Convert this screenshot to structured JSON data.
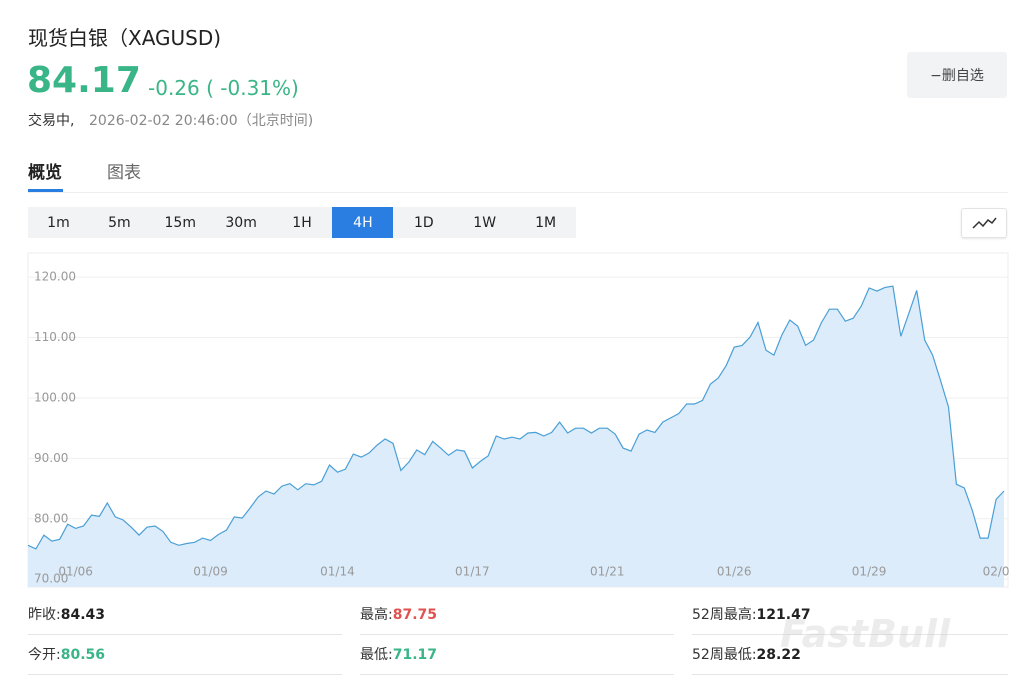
{
  "header": {
    "title": "现货白银（XAGUSD)",
    "price": "84.17",
    "change": "-0.26 ( -0.31%)",
    "status": "交易中,",
    "datetime": "2026-02-02 20:46:00（北京时间)",
    "watch_button": "−删自选"
  },
  "tabs": [
    "概览",
    "图表"
  ],
  "intervals": {
    "items": [
      "1m",
      "5m",
      "15m",
      "30m",
      "1H",
      "4H",
      "1D",
      "1W",
      "1M"
    ],
    "active_index": 5
  },
  "chart_data": {
    "type": "area",
    "color": "#4a9fd6",
    "fill": "#dcecfb",
    "grid": true,
    "x": [
      0,
      1,
      2,
      3,
      4,
      5,
      6,
      7,
      8,
      9,
      10,
      11,
      12,
      13,
      14,
      15,
      16,
      17,
      18,
      19,
      20,
      21,
      22,
      23,
      24,
      25,
      26,
      27,
      28,
      29,
      30,
      31,
      32,
      33,
      34,
      35,
      36,
      37,
      38,
      39,
      40,
      41,
      42,
      43,
      44,
      45,
      46,
      47,
      48,
      49,
      50,
      51,
      52,
      53,
      54,
      55,
      56,
      57,
      58,
      59,
      60,
      61,
      62,
      63,
      64,
      65,
      66,
      67,
      68,
      69,
      70,
      71,
      72,
      73,
      74,
      75,
      76,
      77,
      78,
      79,
      80,
      81,
      82,
      83,
      84,
      85,
      86,
      87,
      88,
      89,
      90,
      91,
      92,
      93,
      94,
      95,
      96,
      97,
      98,
      99,
      100,
      101,
      102,
      103,
      104,
      105,
      106,
      107,
      108,
      109,
      110,
      111,
      112,
      113,
      114,
      115,
      116,
      117,
      118,
      119,
      120,
      121,
      122,
      123
    ],
    "values": [
      75.6,
      75.0,
      77.3,
      76.3,
      76.6,
      79.1,
      78.4,
      78.8,
      80.6,
      80.4,
      82.6,
      80.3,
      79.8,
      78.6,
      77.3,
      78.6,
      78.8,
      77.9,
      76.1,
      75.6,
      75.9,
      76.1,
      76.8,
      76.4,
      77.4,
      78.1,
      80.3,
      80.1,
      81.8,
      83.6,
      84.6,
      84.1,
      85.4,
      85.8,
      84.8,
      85.8,
      85.6,
      86.2,
      88.9,
      87.7,
      88.2,
      90.7,
      90.2,
      90.9,
      92.2,
      93.2,
      92.5,
      88.0,
      89.4,
      91.4,
      90.6,
      92.8,
      91.7,
      90.5,
      91.4,
      91.2,
      88.4,
      89.5,
      90.4,
      93.7,
      93.2,
      93.5,
      93.2,
      94.2,
      94.3,
      93.7,
      94.3,
      96.0,
      94.2,
      95.0,
      95.0,
      94.2,
      95.0,
      95.0,
      94.0,
      91.7,
      91.2,
      94.0,
      94.7,
      94.3,
      96.0,
      96.7,
      97.4,
      99.0,
      99.0,
      99.6,
      102.3,
      103.3,
      105.4,
      108.4,
      108.7,
      110.1,
      112.5,
      107.9,
      107.1,
      110.4,
      112.9,
      111.9,
      108.7,
      109.6,
      112.5,
      114.7,
      114.7,
      112.7,
      113.2,
      115.2,
      118.2,
      117.7,
      118.3,
      118.5,
      110.2,
      114.0,
      117.8,
      109.6,
      107.1,
      102.9,
      98.5,
      85.7,
      85.1,
      81.4,
      76.8,
      76.8,
      83.2,
      84.6
    ],
    "xlim": [
      0,
      123
    ],
    "xticks": [
      {
        "value": 6,
        "label": "01/06"
      },
      {
        "value": 23,
        "label": "01/09"
      },
      {
        "value": 39,
        "label": "01/14"
      },
      {
        "value": 56,
        "label": "01/17"
      },
      {
        "value": 73,
        "label": "01/21"
      },
      {
        "value": 89,
        "label": "01/26"
      },
      {
        "value": 106,
        "label": "01/29"
      },
      {
        "value": 122,
        "label": "02/0"
      }
    ],
    "ylim": [
      68.7,
      124
    ],
    "yticks": [
      {
        "value": 70,
        "label": "70.00"
      },
      {
        "value": 80,
        "label": "80.00"
      },
      {
        "value": 90,
        "label": "90.00"
      },
      {
        "value": 100,
        "label": "100.00"
      },
      {
        "value": 110,
        "label": "110.00"
      },
      {
        "value": 120,
        "label": "120.00"
      }
    ]
  },
  "stats": [
    {
      "label": "昨收:",
      "value": "84.43",
      "color": "#222222"
    },
    {
      "label": "最高:",
      "value": "87.75",
      "color": "#e0524f"
    },
    {
      "label": "52周最高:",
      "value": "121.47",
      "color": "#222222"
    },
    {
      "label": "今开:",
      "value": "80.56",
      "color": "#3ab587"
    },
    {
      "label": "最低:",
      "value": "71.17",
      "color": "#3ab587"
    },
    {
      "label": "52周最低:",
      "value": "28.22",
      "color": "#222222"
    }
  ],
  "watermark": "FastBull"
}
